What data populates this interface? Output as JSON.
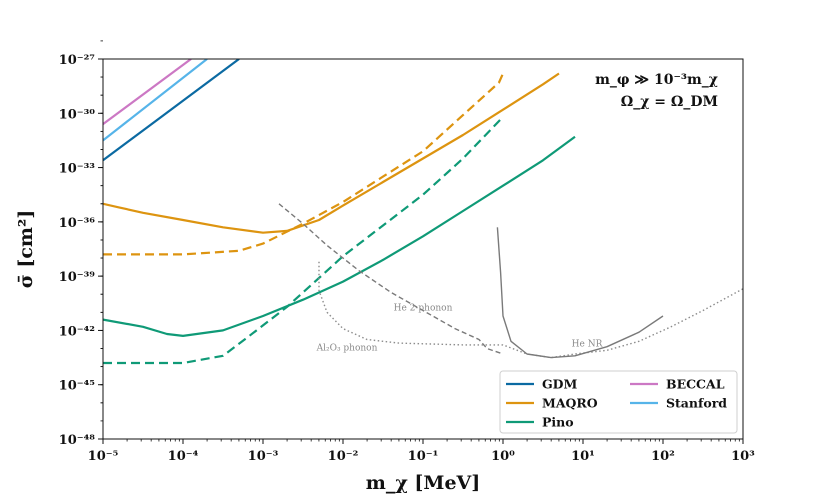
{
  "chart_data": {
    "type": "line",
    "title": "",
    "xlabel": "m_χ [MeV]",
    "ylabel": "σ̄ [cm²]",
    "x_scale": "log",
    "y_scale": "log",
    "xlim_log10": [
      -5,
      3
    ],
    "ylim_log10": [
      -48,
      -27
    ],
    "x_ticks_exp": [
      -5,
      -4,
      -3,
      -2,
      -1,
      0,
      1,
      2,
      3
    ],
    "y_ticks_exp": [
      -48,
      -45,
      -42,
      -39,
      -36,
      -33,
      -30,
      -27
    ],
    "x_tick_labels": [
      "10⁻⁵",
      "10⁻⁴",
      "10⁻³",
      "10⁻²",
      "10⁻¹",
      "10⁰",
      "10¹",
      "10²",
      "10³"
    ],
    "y_tick_labels": [
      "10⁻⁴⁸",
      "10⁻⁴⁵",
      "10⁻⁴²",
      "10⁻³⁹",
      "10⁻³⁶",
      "10⁻³³",
      "10⁻³⁰",
      "10⁻²⁷"
    ],
    "annotation_lines": [
      "m_φ ≫ 10⁻³m_χ",
      "Ω_χ = Ω_DM"
    ],
    "series": [
      {
        "name": "GDM",
        "color": "#0b6aa2",
        "style": "solid",
        "points": [
          [
            -5,
            -32.6
          ],
          [
            -3.3,
            -27
          ]
        ]
      },
      {
        "name": "MAQRO",
        "color": "#dd9410",
        "style": "solid",
        "points": [
          [
            -5,
            -35.0
          ],
          [
            -4.8,
            -35.2
          ],
          [
            -4.5,
            -35.5
          ],
          [
            -4.0,
            -35.9
          ],
          [
            -3.5,
            -36.3
          ],
          [
            -3.0,
            -36.6
          ],
          [
            -2.7,
            -36.5
          ],
          [
            -2.3,
            -35.9
          ],
          [
            -2.0,
            -35.1
          ],
          [
            -1.5,
            -33.8
          ],
          [
            -1.0,
            -32.5
          ],
          [
            -0.5,
            -31.2
          ],
          [
            0,
            -29.8
          ],
          [
            0.5,
            -28.4
          ],
          [
            0.7,
            -27.8
          ]
        ]
      },
      {
        "name": "MAQRO (dashed)",
        "color": "#dd9410",
        "style": "dashed",
        "points": [
          [
            -5,
            -37.8
          ],
          [
            -4,
            -37.8
          ],
          [
            -3.3,
            -37.6
          ],
          [
            -3.0,
            -37.2
          ],
          [
            -2.5,
            -36.1
          ],
          [
            -2,
            -34.9
          ],
          [
            -1.5,
            -33.5
          ],
          [
            -1,
            -32.1
          ],
          [
            -0.5,
            -30.1
          ],
          [
            -0.05,
            -28.3
          ],
          [
            0,
            -27.8
          ]
        ]
      },
      {
        "name": "Pino",
        "color": "#0f9a77",
        "style": "solid",
        "points": [
          [
            -5,
            -41.4
          ],
          [
            -4.5,
            -41.8
          ],
          [
            -4.2,
            -42.2
          ],
          [
            -4,
            -42.3
          ],
          [
            -3.5,
            -42.0
          ],
          [
            -3,
            -41.2
          ],
          [
            -2.5,
            -40.3
          ],
          [
            -2,
            -39.3
          ],
          [
            -1.5,
            -38.1
          ],
          [
            -1,
            -36.8
          ],
          [
            -0.5,
            -35.4
          ],
          [
            0,
            -34.0
          ],
          [
            0.5,
            -32.6
          ],
          [
            0.9,
            -31.3
          ]
        ]
      },
      {
        "name": "Pino (dashed)",
        "color": "#0f9a77",
        "style": "dashed",
        "points": [
          [
            -5,
            -43.8
          ],
          [
            -4,
            -43.8
          ],
          [
            -3.5,
            -43.4
          ],
          [
            -3.2,
            -42.4
          ],
          [
            -2.7,
            -40.7
          ],
          [
            -2.3,
            -39.1
          ],
          [
            -2,
            -37.9
          ],
          [
            -1.5,
            -36.2
          ],
          [
            -1,
            -34.5
          ],
          [
            -0.5,
            -32.5
          ],
          [
            0,
            -30.2
          ]
        ]
      },
      {
        "name": "BECCAL",
        "color": "#cc78c4",
        "style": "solid",
        "points": [
          [
            -5,
            -30.6
          ],
          [
            -3.9,
            -27
          ]
        ]
      },
      {
        "name": "Stanford",
        "color": "#56b4e9",
        "style": "solid",
        "points": [
          [
            -5,
            -31.5
          ],
          [
            -3.7,
            -27
          ]
        ]
      },
      {
        "name": "He 2-phonon",
        "color": "#7a7a7a",
        "style": "dashed",
        "points": [
          [
            -2.8,
            -35.0
          ],
          [
            -2.5,
            -36.1
          ],
          [
            -2.2,
            -37.3
          ],
          [
            -1.8,
            -38.7
          ],
          [
            -1.4,
            -39.9
          ],
          [
            -1.0,
            -40.9
          ],
          [
            -0.6,
            -41.9
          ],
          [
            -0.3,
            -42.5
          ],
          [
            -0.2,
            -43.0
          ],
          [
            0,
            -43.3
          ]
        ]
      },
      {
        "name": "Al2O3 phonon",
        "color": "#8c8c8c",
        "style": "dotted",
        "points": [
          [
            -2.3,
            -38.2
          ],
          [
            -2.3,
            -39.8
          ],
          [
            -2.2,
            -41.0
          ],
          [
            -2.0,
            -41.9
          ],
          [
            -1.7,
            -42.5
          ],
          [
            -1.3,
            -42.7
          ],
          [
            -0.5,
            -42.8
          ],
          [
            0,
            -42.8
          ],
          [
            0.3,
            -43.3
          ],
          [
            0.6,
            -43.5
          ],
          [
            0.9,
            -43.3
          ],
          [
            1.3,
            -43.1
          ],
          [
            1.7,
            -42.6
          ],
          [
            2.1,
            -41.8
          ],
          [
            2.5,
            -40.9
          ],
          [
            3,
            -39.7
          ]
        ]
      },
      {
        "name": "He NR",
        "color": "#7a7a7a",
        "style": "solid",
        "points": [
          [
            -0.07,
            -36.3
          ],
          [
            -0.03,
            -38.8
          ],
          [
            0,
            -41.2
          ],
          [
            0.1,
            -42.6
          ],
          [
            0.3,
            -43.3
          ],
          [
            0.6,
            -43.5
          ],
          [
            0.9,
            -43.4
          ],
          [
            1.3,
            -42.9
          ],
          [
            1.7,
            -42.1
          ],
          [
            2,
            -41.2
          ]
        ]
      }
    ],
    "curve_labels": [
      {
        "text": "He 2-phonon",
        "x": -1.0,
        "y": -40.9
      },
      {
        "text": "Al₂O₃ phonon",
        "x": -1.95,
        "y": -43.1
      },
      {
        "text": "He NR",
        "x": 1.05,
        "y": -42.9
      }
    ],
    "legend": {
      "placement": "bottom-right",
      "entries": [
        {
          "label": "GDM",
          "color": "#0b6aa2"
        },
        {
          "label": "BECCAL",
          "color": "#cc78c4"
        },
        {
          "label": "MAQRO",
          "color": "#dd9410"
        },
        {
          "label": "Stanford",
          "color": "#56b4e9"
        },
        {
          "label": "Pino",
          "color": "#0f9a77"
        }
      ]
    }
  }
}
